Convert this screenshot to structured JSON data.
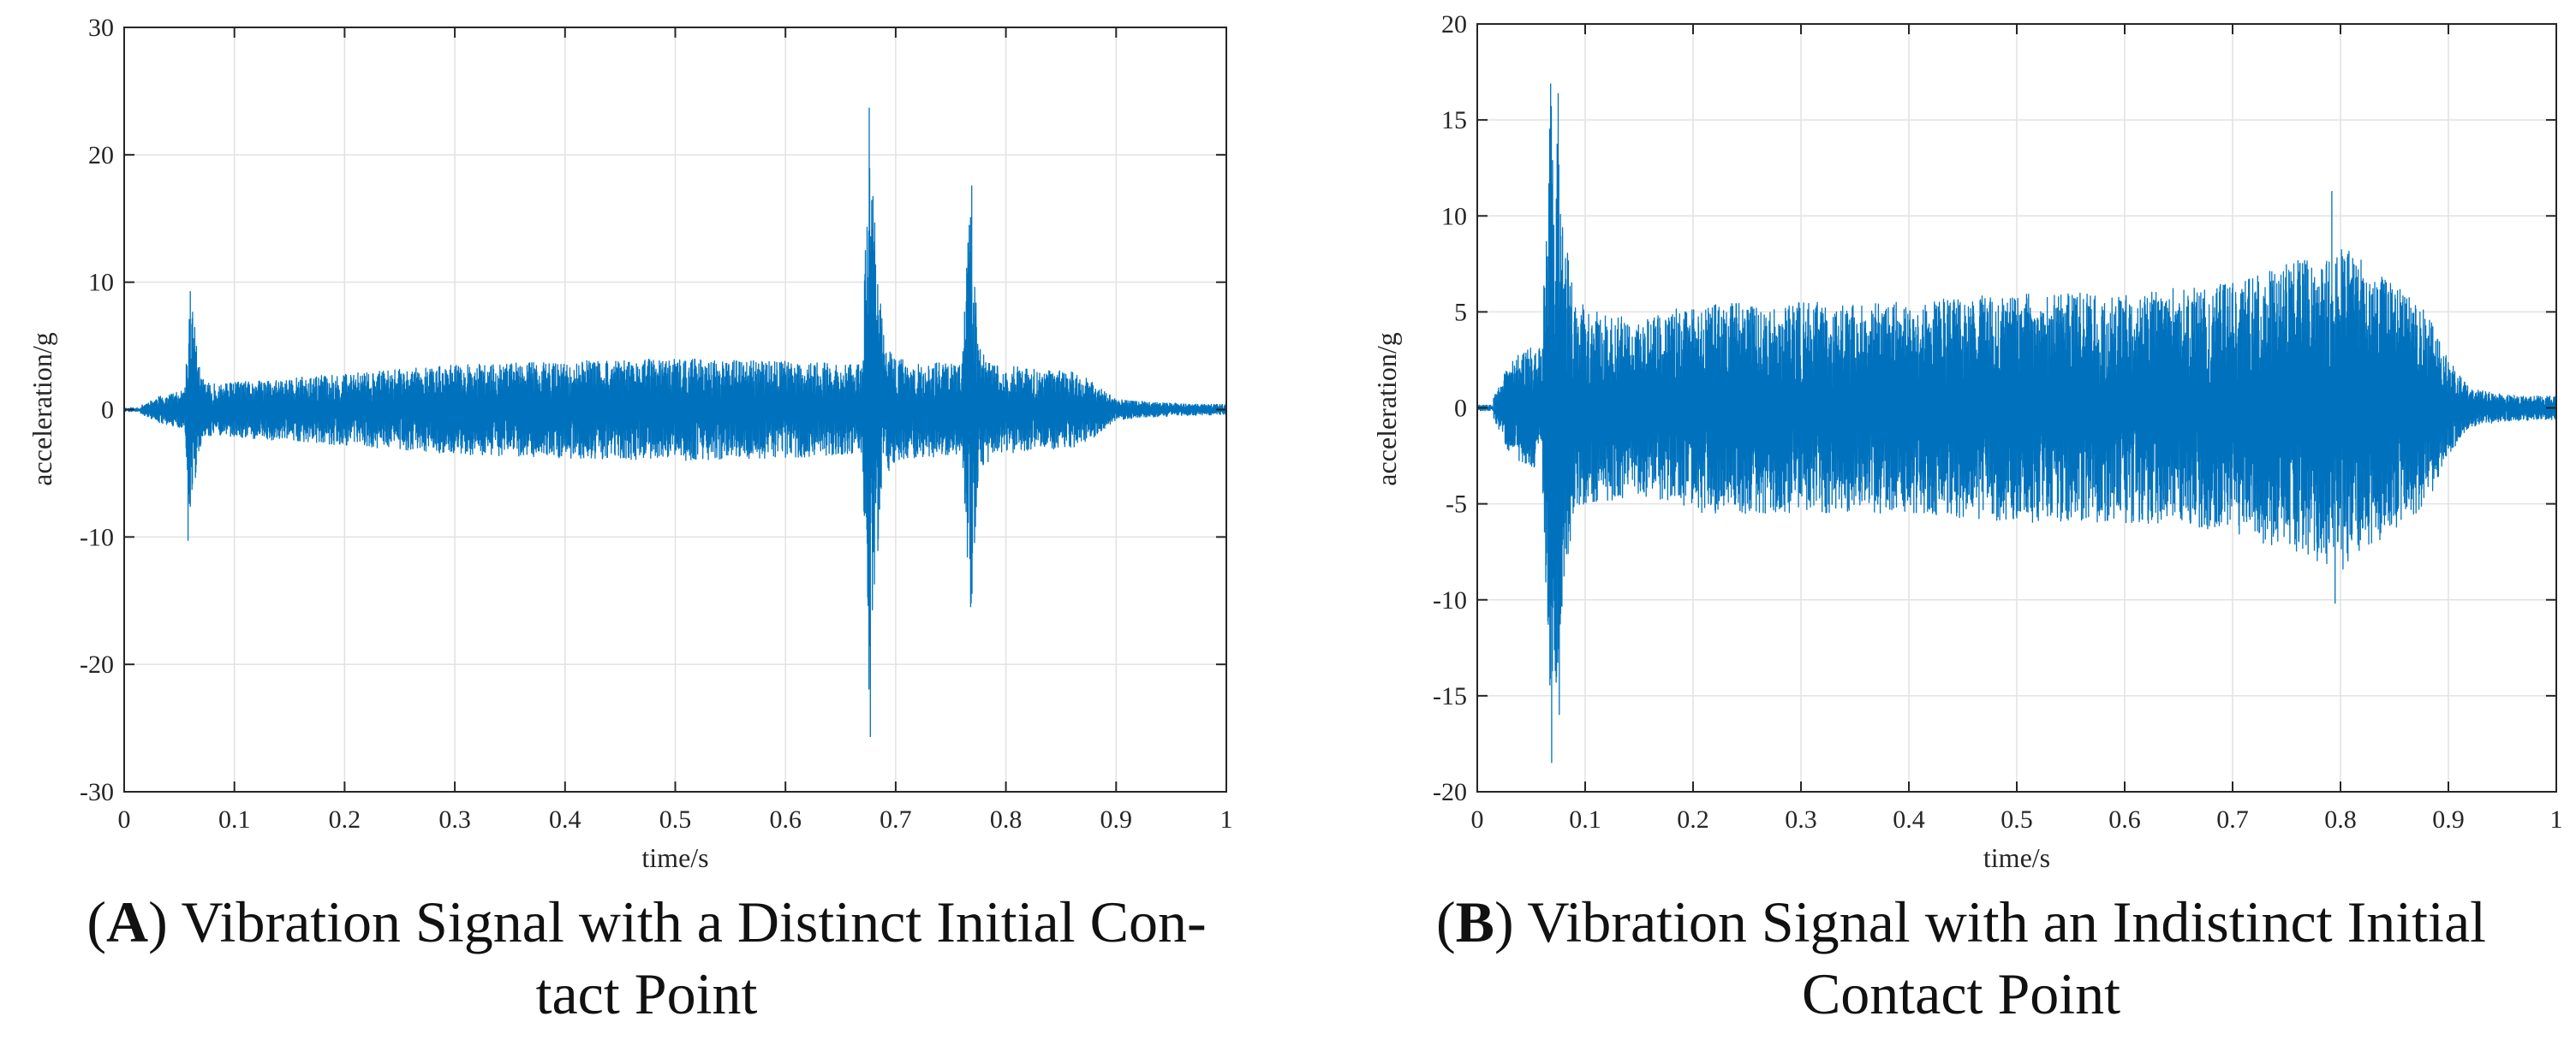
{
  "chart_data": [
    {
      "type": "line",
      "panel": "A",
      "title": "Vibration Signal with a Distinct Initial Contact Point",
      "xlabel": "time/s",
      "ylabel": "acceleration/g",
      "xlim": [
        0,
        1
      ],
      "ylim": [
        -30,
        30
      ],
      "xticks": [
        0,
        0.1,
        0.2,
        0.3,
        0.4,
        0.5,
        0.6,
        0.7,
        0.8,
        0.9,
        1
      ],
      "xtick_labels": [
        "0",
        "0.1",
        "0.2",
        "0.3",
        "0.4",
        "0.5",
        "0.6",
        "0.7",
        "0.8",
        "0.9",
        "1"
      ],
      "yticks": [
        -30,
        -20,
        -10,
        0,
        10,
        20,
        30
      ],
      "ytick_labels": [
        "-30",
        "-20",
        "-10",
        "0",
        "10",
        "20",
        "30"
      ],
      "grid": true,
      "color": "#0072BD",
      "signal_start_s": 0.015,
      "envelope": [
        [
          0.0,
          0.2
        ],
        [
          0.015,
          0.3
        ],
        [
          0.03,
          1.0
        ],
        [
          0.055,
          1.5
        ],
        [
          0.06,
          9.3
        ],
        [
          0.064,
          6.5
        ],
        [
          0.07,
          2.5
        ],
        [
          0.08,
          2.0
        ],
        [
          0.15,
          2.5
        ],
        [
          0.2,
          2.8
        ],
        [
          0.3,
          3.5
        ],
        [
          0.4,
          3.8
        ],
        [
          0.5,
          4.0
        ],
        [
          0.6,
          3.8
        ],
        [
          0.67,
          3.5
        ],
        [
          0.675,
          23.5
        ],
        [
          0.683,
          12.0
        ],
        [
          0.69,
          5.5
        ],
        [
          0.7,
          4.0
        ],
        [
          0.76,
          3.5
        ],
        [
          0.768,
          17.5
        ],
        [
          0.775,
          5.0
        ],
        [
          0.79,
          3.5
        ],
        [
          0.86,
          3.0
        ],
        [
          0.88,
          2.2
        ],
        [
          0.9,
          0.8
        ],
        [
          0.95,
          0.5
        ],
        [
          1.0,
          0.4
        ]
      ],
      "peaks": [
        {
          "t": 0.06,
          "value": 9.3
        },
        {
          "t": 0.058,
          "value": -10.3
        },
        {
          "t": 0.676,
          "value": 23.7
        },
        {
          "t": 0.677,
          "value": -25.7
        },
        {
          "t": 0.769,
          "value": 17.6
        },
        {
          "t": 0.768,
          "value": -15.5
        }
      ]
    },
    {
      "type": "line",
      "panel": "B",
      "title": "Vibration Signal with an Indistinct Initial Contact Point",
      "xlabel": "time/s",
      "ylabel": "acceleration/g",
      "xlim": [
        0,
        1
      ],
      "ylim": [
        -20,
        20
      ],
      "xticks": [
        0,
        0.1,
        0.2,
        0.3,
        0.4,
        0.5,
        0.6,
        0.7,
        0.8,
        0.9,
        1
      ],
      "xtick_labels": [
        "0",
        "0.1",
        "0.2",
        "0.3",
        "0.4",
        "0.5",
        "0.6",
        "0.7",
        "0.8",
        "0.9",
        "1"
      ],
      "yticks": [
        -20,
        -15,
        -10,
        -5,
        0,
        5,
        10,
        15,
        20
      ],
      "ytick_labels": [
        "-20",
        "-15",
        "-10",
        "-5",
        "0",
        "5",
        "10",
        "15",
        "20"
      ],
      "grid": true,
      "color": "#0072BD",
      "signal_start_s": 0.015,
      "envelope": [
        [
          0.0,
          0.2
        ],
        [
          0.015,
          0.5
        ],
        [
          0.03,
          2.5
        ],
        [
          0.06,
          3.5
        ],
        [
          0.066,
          14.0
        ],
        [
          0.07,
          16.8
        ],
        [
          0.08,
          10.0
        ],
        [
          0.09,
          5.5
        ],
        [
          0.15,
          4.5
        ],
        [
          0.2,
          5.5
        ],
        [
          0.3,
          5.5
        ],
        [
          0.4,
          5.5
        ],
        [
          0.5,
          6.0
        ],
        [
          0.6,
          6.0
        ],
        [
          0.7,
          6.5
        ],
        [
          0.8,
          8.5
        ],
        [
          0.85,
          6.5
        ],
        [
          0.88,
          5.0
        ],
        [
          0.9,
          2.5
        ],
        [
          0.92,
          1.0
        ],
        [
          0.95,
          0.7
        ],
        [
          1.0,
          0.6
        ]
      ],
      "peaks": [
        {
          "t": 0.068,
          "value": 16.9
        },
        {
          "t": 0.069,
          "value": -18.5
        },
        {
          "t": 0.075,
          "value": 16.4
        },
        {
          "t": 0.076,
          "value": -16.0
        },
        {
          "t": 0.792,
          "value": 11.3
        },
        {
          "t": 0.795,
          "value": -10.2
        }
      ]
    }
  ],
  "captions": {
    "a": {
      "letter": "A",
      "line1": ") Vibration Signal with a Distinct Initial Con-",
      "line2": "tact Point"
    },
    "b": {
      "letter": "B",
      "line1": ") Vibration Signal with an Indistinct Initial",
      "line2": "Contact Point"
    }
  }
}
